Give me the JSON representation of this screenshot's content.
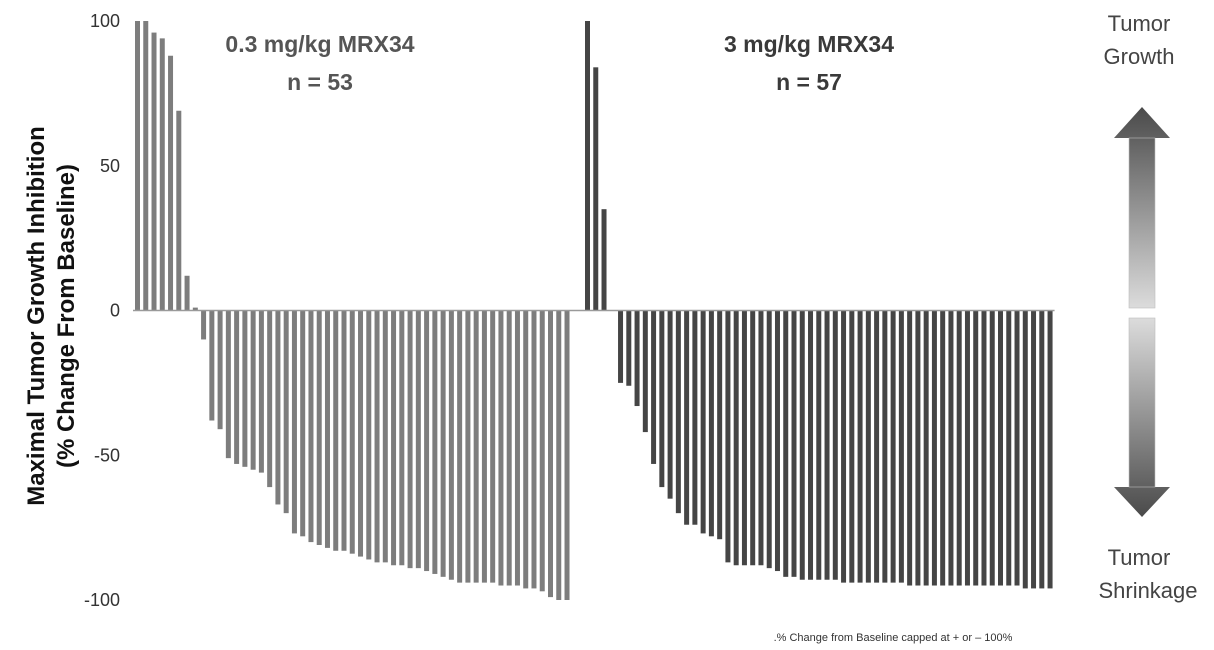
{
  "chart_data": {
    "type": "bar",
    "ylabel_line1": "Maximal Tumor Growth Inhibition",
    "ylabel_line2": "(% Change From Baseline)",
    "ylim": [
      -100,
      100
    ],
    "yticks": [
      "100",
      "50",
      "0",
      "-50",
      "-100"
    ],
    "groups": [
      {
        "title": "0.3 mg/kg MRX34",
        "n_label": "n = 53",
        "color": "#7d7d7d",
        "values": [
          100,
          100,
          96,
          94,
          88,
          69,
          12,
          1,
          -10,
          -38,
          -41,
          -51,
          -53,
          -54,
          -55,
          -56,
          -61,
          -67,
          -70,
          -77,
          -78,
          -80,
          -81,
          -82,
          -83,
          -83,
          -84,
          -85,
          -86,
          -87,
          -87,
          -88,
          -88,
          -89,
          -89,
          -90,
          -91,
          -92,
          -93,
          -94,
          -94,
          -94,
          -94,
          -94,
          -95,
          -95,
          -95,
          -96,
          -96,
          -97,
          -99,
          -100,
          -100
        ]
      },
      {
        "title": "3 mg/kg MRX34",
        "n_label": "n = 57",
        "color": "#454545",
        "values": [
          100,
          84,
          35,
          0,
          -25,
          -26,
          -33,
          -42,
          -53,
          -61,
          -65,
          -70,
          -74,
          -74,
          -77,
          -78,
          -79,
          -87,
          -88,
          -88,
          -88,
          -88,
          -89,
          -90,
          -92,
          -92,
          -93,
          -93,
          -93,
          -93,
          -93,
          -94,
          -94,
          -94,
          -94,
          -94,
          -94,
          -94,
          -94,
          -95,
          -95,
          -95,
          -95,
          -95,
          -95,
          -95,
          -95,
          -95,
          -95,
          -95,
          -95,
          -95,
          -95,
          -96,
          -96,
          -96,
          -96
        ]
      }
    ],
    "grid": false,
    "legend": "none"
  },
  "annotations": {
    "growth_label": [
      "Tumor",
      "Growth"
    ],
    "shrink_label": [
      "Tumor",
      "Shrinkage"
    ],
    "footnote": ".% Change from Baseline capped at + or – 100%"
  },
  "arrow_colors": {
    "dark": "#4a4a4a",
    "light": "#dcdcdc"
  }
}
